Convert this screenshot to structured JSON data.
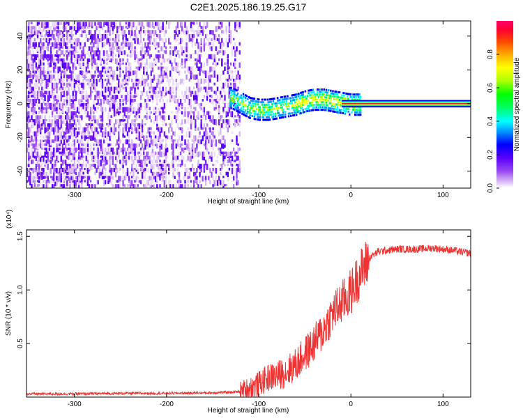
{
  "title": "C2E1.2025.186.19.25.G17",
  "chart_data": [
    {
      "type": "heatmap",
      "title": "C2E1.2025.186.19.25.G17",
      "xlabel": "Height of straight line (km)",
      "ylabel": "Frequency (Hz)",
      "xlim": [
        -352,
        130
      ],
      "ylim": [
        -50,
        49
      ],
      "xticks": [
        -300,
        -200,
        -100,
        0,
        100
      ],
      "yticks": [
        -40,
        -20,
        0,
        20,
        40
      ],
      "xtick_labels": [
        "-300",
        "-200",
        "-100",
        "0",
        "100"
      ],
      "ytick_labels": [
        "-40",
        "-20",
        "0",
        "20",
        "40"
      ],
      "colorbar": {
        "label": "Normalized spectral amplitude",
        "range": [
          0,
          1
        ],
        "ticks": [
          0.0,
          0.2,
          0.4,
          0.6,
          0.8
        ],
        "tick_labels": [
          "0.0",
          "0.2",
          "0.4",
          "0.6",
          "0.8"
        ],
        "colors": [
          "#ffffff",
          "#d9b8f5",
          "#9a4cf0",
          "#5a00ff",
          "#0000ff",
          "#0099ff",
          "#00ffff",
          "#00ff66",
          "#00ff00",
          "#aaff00",
          "#ffff00",
          "#ffaa00",
          "#ff4400",
          "#ff0033",
          "#ff0066"
        ]
      },
      "ridge": {
        "x": [
          -130,
          -120,
          -110,
          -100,
          -90,
          -80,
          -70,
          -60,
          -50,
          -40,
          -30,
          -20,
          -10,
          0,
          10,
          50,
          100,
          125
        ],
        "y": [
          4,
          1,
          -2,
          -3,
          -3,
          -2,
          -1,
          0,
          2,
          3,
          3,
          2,
          1,
          0,
          0,
          0,
          0,
          0
        ]
      }
    },
    {
      "type": "line",
      "title": "",
      "xlabel": "Height of straight line (km)",
      "ylabel": "SNR (10 * v/v)",
      "y_multiplier": "(x10⁴)",
      "xlim": [
        -352,
        130
      ],
      "ylim": [
        0,
        1.56
      ],
      "xticks": [
        -300,
        -200,
        -100,
        0,
        100
      ],
      "yticks": [
        0.5,
        1.0,
        1.5
      ],
      "xtick_labels": [
        "-300",
        "-200",
        "-100",
        "0",
        "100"
      ],
      "ytick_labels": [
        "0.5",
        "1.0",
        "1.5"
      ],
      "color": "#ee3333",
      "series": [
        {
          "x": [
            -352,
            -300,
            -250,
            -200,
            -150,
            -120,
            -100,
            -90,
            -80,
            -70,
            -60,
            -50,
            -40,
            -30,
            -20,
            -10,
            0,
            10,
            20,
            30,
            50,
            70,
            90,
            110,
            130
          ],
          "y": [
            0.03,
            0.03,
            0.035,
            0.035,
            0.04,
            0.05,
            0.12,
            0.18,
            0.2,
            0.24,
            0.3,
            0.4,
            0.5,
            0.62,
            0.78,
            0.88,
            0.98,
            1.15,
            1.3,
            1.36,
            1.38,
            1.38,
            1.39,
            1.37,
            1.34
          ]
        }
      ]
    }
  ]
}
